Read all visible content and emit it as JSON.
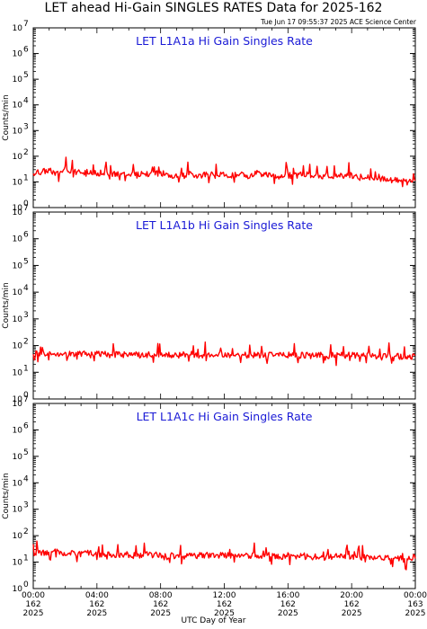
{
  "header": {
    "title": "LET ahead Hi-Gain SINGLES RATES Data for 2025-162",
    "timestamp": "Tue Jun 17 09:55:37 2025 ACE Science Center"
  },
  "chart_data": [
    {
      "type": "line",
      "title": "LET L1A1a Hi Gain Singles Rate",
      "ylabel": "Counts/min",
      "yscale": "log",
      "ylim": [
        1,
        10000000
      ],
      "xlim": [
        0,
        24
      ],
      "color": "#ff0000",
      "x": [
        0,
        0.5,
        1,
        1.5,
        2,
        2.5,
        3,
        3.5,
        4,
        4.5,
        5,
        5.5,
        6,
        6.5,
        7,
        7.5,
        8,
        8.5,
        9,
        9.5,
        10,
        10.5,
        11,
        11.5,
        12,
        12.5,
        13,
        13.5,
        14,
        14.5,
        15,
        15.5,
        16,
        16.5,
        17,
        17.5,
        18,
        18.5,
        19,
        19.5,
        20,
        20.5,
        21,
        21.5,
        22,
        22.5,
        23,
        23.5,
        24
      ],
      "y": [
        22,
        25,
        28,
        20,
        30,
        24,
        22,
        26,
        21,
        23,
        20,
        19,
        22,
        18,
        21,
        20,
        22,
        19,
        17,
        20,
        19,
        18,
        21,
        17,
        19,
        18,
        20,
        17,
        21,
        18,
        19,
        16,
        18,
        17,
        20,
        17,
        18,
        16,
        17,
        16,
        18,
        15,
        16,
        13,
        14,
        12,
        11,
        10,
        13
      ]
    },
    {
      "type": "line",
      "title": "LET L1A1b Hi Gain Singles Rate",
      "ylabel": "Counts/min",
      "yscale": "log",
      "ylim": [
        1,
        10000000
      ],
      "xlim": [
        0,
        24
      ],
      "color": "#ff0000",
      "x": [
        0,
        0.5,
        1,
        1.5,
        2,
        2.5,
        3,
        3.5,
        4,
        4.5,
        5,
        5.5,
        6,
        6.5,
        7,
        7.5,
        8,
        8.5,
        9,
        9.5,
        10,
        10.5,
        11,
        11.5,
        12,
        12.5,
        13,
        13.5,
        14,
        14.5,
        15,
        15.5,
        16,
        16.5,
        17,
        17.5,
        18,
        18.5,
        19,
        19.5,
        20,
        20.5,
        21,
        21.5,
        22,
        22.5,
        23,
        23.5,
        24
      ],
      "y": [
        48,
        50,
        45,
        52,
        47,
        46,
        50,
        44,
        48,
        47,
        45,
        46,
        49,
        44,
        47,
        45,
        46,
        43,
        45,
        44,
        46,
        43,
        45,
        44,
        46,
        42,
        44,
        43,
        45,
        42,
        44,
        43,
        45,
        41,
        43,
        42,
        44,
        41,
        43,
        42,
        44,
        41,
        42,
        40,
        41,
        38,
        39,
        36,
        42
      ]
    },
    {
      "type": "line",
      "title": "LET L1A1c Hi Gain Singles Rate",
      "ylabel": "Counts/min",
      "yscale": "log",
      "ylim": [
        1,
        10000000
      ],
      "xlim": [
        0,
        24
      ],
      "color": "#ff0000",
      "x": [
        0,
        0.5,
        1,
        1.5,
        2,
        2.5,
        3,
        3.5,
        4,
        4.5,
        5,
        5.5,
        6,
        6.5,
        7,
        7.5,
        8,
        8.5,
        9,
        9.5,
        10,
        10.5,
        11,
        11.5,
        12,
        12.5,
        13,
        13.5,
        14,
        14.5,
        15,
        15.5,
        16,
        16.5,
        17,
        17.5,
        18,
        18.5,
        19,
        19.5,
        20,
        20.5,
        21,
        21.5,
        22,
        22.5,
        23,
        23.5,
        24
      ],
      "y": [
        20,
        24,
        22,
        26,
        21,
        23,
        20,
        22,
        19,
        21,
        18,
        20,
        19,
        17,
        20,
        18,
        19,
        17,
        18,
        16,
        19,
        17,
        18,
        16,
        19,
        17,
        18,
        16,
        18,
        17,
        19,
        16,
        18,
        16,
        17,
        15,
        17,
        16,
        17,
        15,
        16,
        15,
        16,
        14,
        15,
        13,
        14,
        12,
        16
      ]
    }
  ],
  "xaxis": {
    "label": "UTC Day of Year",
    "ticks": [
      {
        "time": "00:00",
        "day": "162",
        "year": "2025"
      },
      {
        "time": "04:00",
        "day": "162",
        "year": "2025"
      },
      {
        "time": "08:00",
        "day": "162",
        "year": "2025"
      },
      {
        "time": "12:00",
        "day": "162",
        "year": "2025"
      },
      {
        "time": "16:00",
        "day": "162",
        "year": "2025"
      },
      {
        "time": "20:00",
        "day": "162",
        "year": "2025"
      },
      {
        "time": "00:00",
        "day": "163",
        "year": "2025"
      }
    ]
  },
  "yaxis": {
    "decades": [
      "10",
      "10",
      "10",
      "10",
      "10",
      "10",
      "10",
      "10"
    ],
    "exponents": [
      "0",
      "1",
      "2",
      "3",
      "4",
      "5",
      "6",
      "7"
    ]
  }
}
